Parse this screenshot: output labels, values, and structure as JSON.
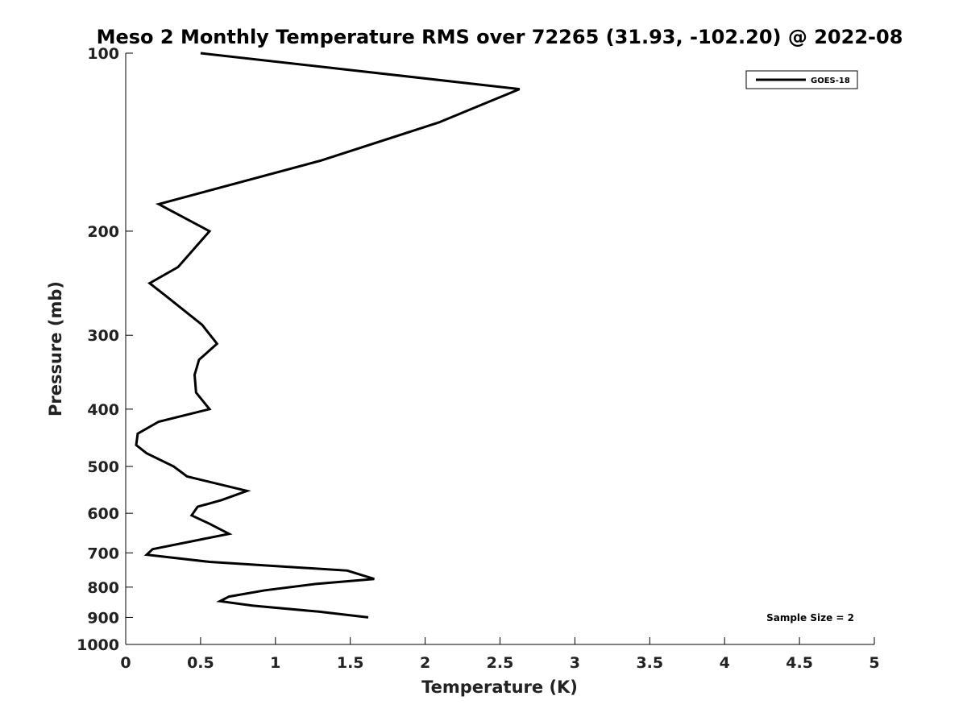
{
  "chart_data": {
    "type": "line",
    "title": "Meso 2 Monthly Temperature RMS over 72265 (31.93, -102.20) @ 2022-08",
    "xlabel": "Temperature (K)",
    "ylabel": "Pressure (mb)",
    "xlim": [
      0,
      5
    ],
    "ylim": [
      100,
      1000
    ],
    "y_scale": "log",
    "y_reversed": true,
    "x_ticks": [
      "0",
      "0.5",
      "1",
      "1.5",
      "2",
      "2.5",
      "3",
      "3.5",
      "4",
      "4.5",
      "5"
    ],
    "y_ticks": [
      "100",
      "200",
      "300",
      "400",
      "500",
      "600",
      "700",
      "800",
      "900",
      "1000"
    ],
    "grid": false,
    "legend_position": "top-right",
    "series": [
      {
        "name": "GOES-18",
        "color": "#000000",
        "x": [
          0.5,
          2.63,
          2.09,
          1.3,
          0.22,
          0.56,
          0.35,
          0.16,
          0.29,
          0.51,
          0.61,
          0.49,
          0.46,
          0.47,
          0.56,
          0.22,
          0.08,
          0.07,
          0.14,
          0.32,
          0.41,
          0.81,
          0.64,
          0.48,
          0.44,
          0.56,
          0.69,
          0.18,
          0.14,
          0.56,
          1.48,
          1.66,
          1.27,
          0.93,
          0.69,
          0.63,
          0.85,
          1.29,
          1.62
        ],
        "y": [
          100,
          115,
          131,
          152,
          180,
          200,
          230,
          245,
          260,
          288,
          310,
          330,
          350,
          375,
          400,
          420,
          440,
          460,
          475,
          500,
          520,
          550,
          570,
          585,
          605,
          625,
          650,
          690,
          705,
          725,
          750,
          775,
          790,
          810,
          830,
          845,
          860,
          880,
          900
        ]
      }
    ],
    "annotation": "Sample Size = 2"
  }
}
